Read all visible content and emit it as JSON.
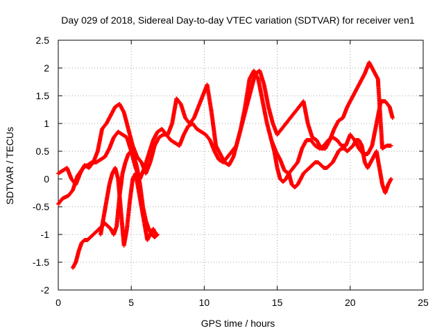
{
  "chart_data": {
    "type": "scatter",
    "title": "Day 029 of 2018, Sidereal Day-to-day VTEC variation (SDTVAR) for receiver ven1",
    "xlabel": "GPS time / hours",
    "ylabel": "SDTVAR / TECUs",
    "xlim": [
      0,
      25
    ],
    "ylim": [
      -2,
      2.5
    ],
    "xticks": [
      0,
      5,
      10,
      15,
      20,
      25
    ],
    "xtick_labels": [
      "0",
      "5",
      "10",
      "15",
      "20",
      "25"
    ],
    "yticks": [
      -2,
      -1.5,
      -1,
      -0.5,
      0,
      0.5,
      1,
      1.5,
      2,
      2.5
    ],
    "ytick_labels": [
      "-2",
      "-1.5",
      "-1",
      "-0.5",
      "0",
      "0.5",
      "1",
      "1.5",
      "2",
      "2.5"
    ],
    "grid": true,
    "marker": "+",
    "color": "#ff0000",
    "series": [
      {
        "name": "trace-1",
        "x": [
          0,
          0.3,
          0.7,
          1.0,
          1.3,
          1.7,
          2.0,
          2.3,
          2.6,
          2.9,
          3.2,
          3.5,
          3.8,
          4.1,
          4.4,
          4.7,
          5.0,
          5.3,
          5.6,
          5.9,
          6.2,
          6.5,
          6.8,
          7.1,
          7.4,
          7.7,
          8.0,
          8.3,
          8.6,
          8.9,
          9.2,
          9.5,
          9.8,
          10.1,
          10.4,
          10.7,
          11.0,
          11.3,
          11.6,
          11.9,
          12.2,
          12.5,
          12.8,
          13.1,
          13.4,
          13.7,
          14.0,
          14.3,
          14.6,
          14.9,
          15.2,
          15.5,
          15.8,
          16.1,
          16.4,
          16.7,
          17.0,
          17.3,
          17.6,
          17.9,
          18.2,
          18.5,
          18.8,
          19.1,
          19.4,
          19.7,
          20.0,
          20.3,
          20.6,
          20.9,
          21.2,
          21.5,
          21.8,
          22.1,
          22.4,
          22.7,
          22.9
        ],
        "y": [
          -0.45,
          -0.35,
          -0.3,
          -0.2,
          0.05,
          0.2,
          0.25,
          0.3,
          0.3,
          0.35,
          0.4,
          0.55,
          0.75,
          0.85,
          0.8,
          0.75,
          0.5,
          0.2,
          0.0,
          0.2,
          0.45,
          0.7,
          0.85,
          0.9,
          0.8,
          0.7,
          0.65,
          0.6,
          0.8,
          0.95,
          1.0,
          0.9,
          0.85,
          0.8,
          0.7,
          0.5,
          0.35,
          0.3,
          0.4,
          0.5,
          0.6,
          0.9,
          1.3,
          1.8,
          1.95,
          1.8,
          1.4,
          1.0,
          0.7,
          0.5,
          0.35,
          0.15,
          0.1,
          0.2,
          0.3,
          0.55,
          0.7,
          0.7,
          0.6,
          0.55,
          0.6,
          0.7,
          0.75,
          0.7,
          0.6,
          0.6,
          0.8,
          0.7,
          0.55,
          0.45,
          0.45,
          0.6,
          1.0,
          1.4,
          1.4,
          1.3,
          1.1
        ]
      },
      {
        "name": "trace-2",
        "x": [
          0,
          0.3,
          0.6,
          0.9,
          1.2,
          1.5,
          1.8,
          2.1,
          2.4,
          2.7,
          3.0,
          3.3,
          3.6,
          3.9,
          4.2,
          4.5,
          4.8,
          5.1,
          5.4,
          5.7,
          6.0,
          6.3,
          6.6,
          6.9,
          7.2,
          7.5,
          7.8,
          8.1,
          8.4,
          8.7,
          9.0,
          9.3,
          9.6,
          9.9,
          10.2,
          10.5,
          10.8,
          11.1,
          11.4,
          11.7,
          12.0,
          12.3,
          12.6,
          12.9,
          13.2,
          13.5,
          13.8,
          14.1,
          14.4,
          14.7,
          15.0,
          15.3,
          15.6,
          15.9,
          16.2,
          16.5,
          16.8,
          17.1,
          17.4,
          17.7,
          18.0,
          18.3,
          18.6,
          18.9,
          19.2,
          19.5,
          19.8,
          20.1,
          20.4,
          20.7,
          21.0,
          21.3,
          21.6,
          21.9,
          22.2,
          22.5,
          22.8
        ],
        "y": [
          0.1,
          0.15,
          0.2,
          0.0,
          -0.1,
          0.1,
          0.25,
          0.2,
          0.3,
          0.5,
          0.9,
          1.0,
          1.15,
          1.3,
          1.35,
          1.2,
          0.9,
          0.6,
          0.4,
          0.3,
          0.1,
          0.3,
          0.6,
          0.75,
          0.8,
          0.8,
          1.0,
          1.45,
          1.35,
          1.1,
          1.0,
          1.1,
          1.3,
          1.5,
          1.7,
          1.2,
          0.6,
          0.45,
          0.3,
          0.25,
          0.4,
          0.7,
          1.0,
          1.3,
          1.6,
          1.9,
          1.95,
          1.7,
          1.3,
          1.0,
          0.8,
          0.9,
          1.0,
          1.1,
          1.2,
          1.3,
          1.4,
          1.0,
          0.75,
          0.7,
          0.55,
          0.55,
          0.7,
          0.9,
          1.05,
          1.1,
          1.3,
          1.45,
          1.6,
          1.75,
          1.9,
          2.1,
          1.95,
          1.8,
          0.55,
          0.6,
          0.6
        ]
      },
      {
        "name": "trace-3",
        "x": [
          1.0,
          1.2,
          1.4,
          1.6,
          1.8,
          2.0,
          2.2,
          2.4,
          2.6,
          2.8,
          3.0,
          3.2,
          3.4,
          3.6,
          3.8,
          4.0,
          4.2,
          4.4,
          4.6,
          4.8,
          5.0,
          5.2,
          5.4,
          5.6,
          5.8,
          6.0,
          6.2,
          6.4,
          6.6,
          6.8
        ],
        "y": [
          -1.6,
          -1.5,
          -1.3,
          -1.15,
          -1.1,
          -1.1,
          -1.05,
          -1.0,
          -0.95,
          -0.9,
          -0.85,
          -0.8,
          -0.85,
          -0.9,
          -1.0,
          -0.85,
          -0.3,
          0.1,
          0.3,
          0.45,
          0.5,
          0.4,
          0.2,
          -0.1,
          -0.5,
          -0.75,
          -0.9,
          -1.0,
          -1.05,
          -1.0
        ]
      },
      {
        "name": "trace-4",
        "x": [
          2.9,
          3.1,
          3.3,
          3.5,
          3.7,
          3.9,
          4.1,
          4.3,
          4.5,
          4.7,
          4.9,
          5.1,
          5.3,
          5.5,
          5.7,
          5.9,
          6.1,
          6.3,
          6.5,
          6.7
        ],
        "y": [
          -1.0,
          -0.7,
          -0.4,
          -0.1,
          0.1,
          0.2,
          0.0,
          -0.6,
          -1.2,
          -0.9,
          -0.4,
          0.0,
          0.1,
          -0.2,
          -0.5,
          -0.8,
          -1.1,
          -1.0,
          -0.9,
          -1.0
        ]
      },
      {
        "name": "trace-5",
        "x": [
          14.6,
          14.8,
          15.0,
          15.2,
          15.4,
          15.6,
          15.8,
          16.0,
          16.2,
          16.4,
          16.6,
          16.8,
          17.0,
          17.2,
          17.4,
          17.6,
          17.8,
          18.0,
          18.2,
          18.4,
          18.6,
          18.8,
          19.0,
          19.2,
          19.4,
          19.6,
          19.8,
          20.0,
          20.2,
          20.4,
          20.6,
          20.8,
          21.0,
          21.2,
          21.4,
          21.6,
          21.8,
          22.0,
          22.2,
          22.4,
          22.6,
          22.8
        ],
        "y": [
          0.7,
          0.5,
          0.2,
          0.0,
          -0.05,
          0.0,
          0.1,
          -0.1,
          -0.15,
          -0.1,
          0.0,
          0.1,
          0.15,
          0.2,
          0.25,
          0.3,
          0.3,
          0.25,
          0.2,
          0.2,
          0.25,
          0.3,
          0.4,
          0.5,
          0.55,
          0.55,
          0.5,
          0.55,
          0.6,
          0.7,
          0.7,
          0.6,
          0.3,
          0.2,
          0.3,
          0.4,
          0.5,
          0.2,
          -0.1,
          -0.25,
          -0.1,
          0.0
        ]
      }
    ]
  }
}
